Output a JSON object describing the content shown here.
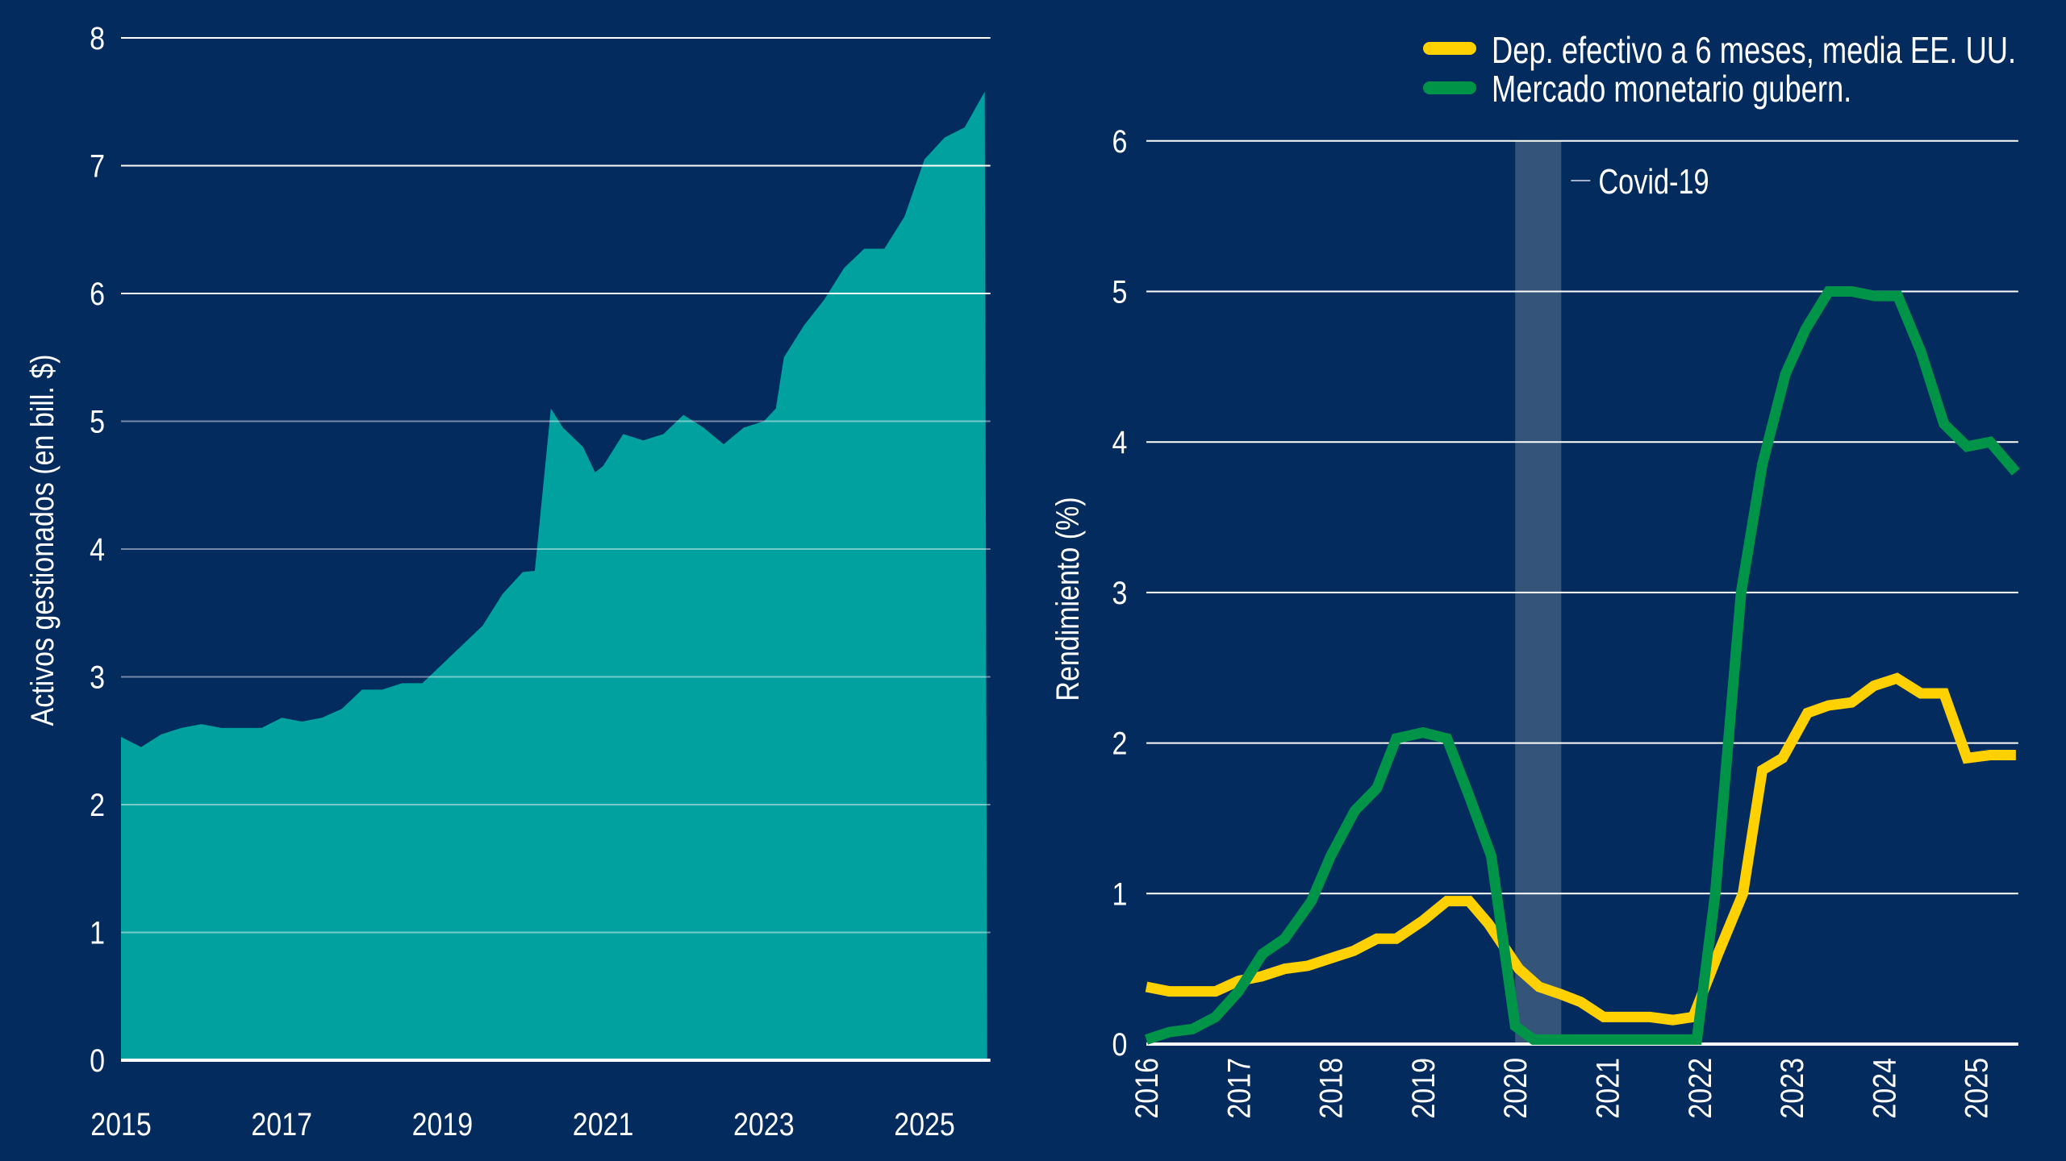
{
  "colors": {
    "background": "#032b5e",
    "area": "#00a19e",
    "deposit": "#ffd100",
    "money_market": "#009448",
    "covid_band": "#34547a",
    "grid": "#ffffff"
  },
  "chart_data": [
    {
      "type": "area",
      "ylabel": "Activos gestionados (en bill. $)",
      "xlabel": "",
      "xlim": [
        2015,
        2025.8
      ],
      "ylim": [
        0,
        8
      ],
      "yticks": [
        "0",
        "1",
        "2",
        "3",
        "4",
        "5",
        "6",
        "7",
        "8"
      ],
      "xticks": [
        "2015",
        "2017",
        "2019",
        "2021",
        "2023",
        "2025"
      ],
      "grid": true,
      "x": [
        2015.0,
        2015.25,
        2015.5,
        2015.75,
        2016.0,
        2016.25,
        2016.5,
        2016.75,
        2017.0,
        2017.25,
        2017.5,
        2017.75,
        2018.0,
        2018.25,
        2018.5,
        2018.75,
        2019.0,
        2019.25,
        2019.5,
        2019.75,
        2020.0,
        2020.15,
        2020.35,
        2020.5,
        2020.75,
        2020.9,
        2021.0,
        2021.25,
        2021.5,
        2021.75,
        2022.0,
        2022.25,
        2022.5,
        2022.75,
        2023.0,
        2023.15,
        2023.25,
        2023.5,
        2023.75,
        2024.0,
        2024.25,
        2024.5,
        2024.75,
        2025.0,
        2025.25,
        2025.5,
        2025.75
      ],
      "values": [
        2.53,
        2.45,
        2.55,
        2.6,
        2.63,
        2.6,
        2.6,
        2.6,
        2.68,
        2.65,
        2.68,
        2.75,
        2.9,
        2.9,
        2.95,
        2.95,
        3.1,
        3.25,
        3.4,
        3.65,
        3.82,
        3.83,
        5.1,
        4.95,
        4.8,
        4.6,
        4.65,
        4.9,
        4.85,
        4.9,
        5.05,
        4.95,
        4.82,
        4.95,
        5.0,
        5.1,
        5.5,
        5.75,
        5.95,
        6.2,
        6.35,
        6.35,
        6.6,
        7.05,
        7.22,
        7.3,
        7.58
      ]
    },
    {
      "type": "line",
      "ylabel": "Rendimiento (%)",
      "xlabel": "",
      "xlim": [
        2016,
        2025.43
      ],
      "ylim": [
        0,
        6
      ],
      "yticks": [
        "0",
        "1",
        "2",
        "3",
        "4",
        "5",
        "6"
      ],
      "xticks": [
        "2016",
        "2017",
        "2018",
        "2019",
        "2020",
        "2021",
        "2022",
        "2023",
        "2024",
        "2025"
      ],
      "grid": true,
      "legend_position": "top-right",
      "annotation": {
        "label": "Covid-19",
        "x_range": [
          2020.0,
          2020.5
        ]
      },
      "series": [
        {
          "name": "Dep. efectivo a 6 meses, media EE. UU.",
          "color": "#ffd100",
          "x": [
            2016.0,
            2016.25,
            2016.5,
            2016.75,
            2017.0,
            2017.25,
            2017.5,
            2017.75,
            2018.0,
            2018.25,
            2018.5,
            2018.71,
            2019.0,
            2019.26,
            2019.5,
            2019.71,
            2020.04,
            2020.26,
            2020.5,
            2020.71,
            2020.96,
            2021.25,
            2021.46,
            2021.71,
            2021.93,
            2022.2,
            2022.47,
            2022.68,
            2022.9,
            2023.17,
            2023.4,
            2023.65,
            2023.89,
            2024.14,
            2024.4,
            2024.65,
            2024.9,
            2025.15,
            2025.43
          ],
          "values": [
            0.38,
            0.35,
            0.35,
            0.35,
            0.42,
            0.45,
            0.5,
            0.52,
            0.57,
            0.62,
            0.7,
            0.7,
            0.82,
            0.95,
            0.95,
            0.8,
            0.5,
            0.38,
            0.33,
            0.28,
            0.18,
            0.18,
            0.18,
            0.16,
            0.18,
            0.6,
            1.0,
            1.82,
            1.9,
            2.2,
            2.25,
            2.27,
            2.38,
            2.43,
            2.33,
            2.33,
            1.9,
            1.92,
            1.92
          ]
        },
        {
          "name": "Mercado monetario gubern.",
          "color": "#009448",
          "x": [
            2016.0,
            2016.25,
            2016.5,
            2016.75,
            2017.0,
            2017.26,
            2017.5,
            2017.79,
            2018.0,
            2018.26,
            2018.5,
            2018.71,
            2019.0,
            2019.26,
            2019.5,
            2019.74,
            2020.0,
            2020.2,
            2020.5,
            2021.0,
            2021.5,
            2021.97,
            2022.17,
            2022.45,
            2022.68,
            2022.93,
            2023.15,
            2023.4,
            2023.65,
            2023.9,
            2024.15,
            2024.4,
            2024.65,
            2024.9,
            2025.15,
            2025.43
          ],
          "values": [
            0.03,
            0.08,
            0.1,
            0.18,
            0.35,
            0.6,
            0.7,
            0.95,
            1.25,
            1.55,
            1.7,
            2.03,
            2.07,
            2.03,
            1.65,
            1.25,
            0.12,
            0.03,
            0.03,
            0.03,
            0.03,
            0.03,
            1.0,
            3.0,
            3.85,
            4.45,
            4.75,
            5.0,
            5.0,
            4.97,
            4.97,
            4.6,
            4.12,
            3.97,
            4.0,
            3.8
          ]
        }
      ]
    }
  ]
}
